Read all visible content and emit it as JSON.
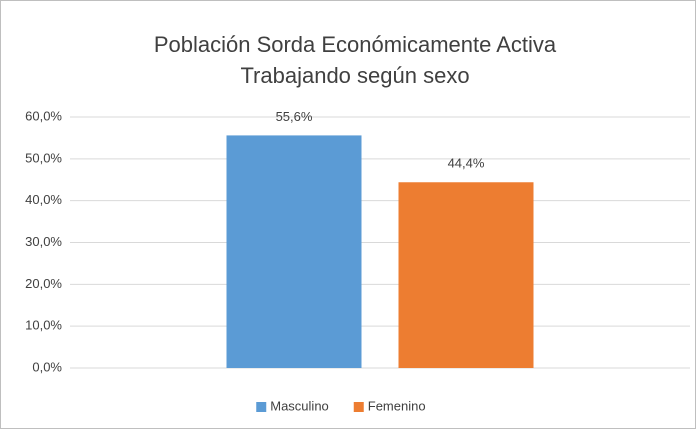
{
  "chart_data": {
    "type": "bar",
    "title": [
      "Población Sorda Económicamente Activa",
      "Trabajando según sexo"
    ],
    "categories": [
      null
    ],
    "series": [
      {
        "name": "Masculino",
        "color": "#5b9bd5",
        "values": [
          55.6
        ],
        "value_labels": [
          "55,6%"
        ]
      },
      {
        "name": "Femenino",
        "color": "#ed7d31",
        "values": [
          44.4
        ],
        "value_labels": [
          "44,4%"
        ]
      }
    ],
    "ylim": [
      0,
      60
    ],
    "yticks": [
      {
        "value": 0,
        "label": "0,0%"
      },
      {
        "value": 10,
        "label": "10,0%"
      },
      {
        "value": 20,
        "label": "20,0%"
      },
      {
        "value": 30,
        "label": "30,0%"
      },
      {
        "value": 40,
        "label": "40,0%"
      },
      {
        "value": 50,
        "label": "50,0%"
      },
      {
        "value": 60,
        "label": "60,0%"
      }
    ],
    "grid": true,
    "legend": "bottom"
  }
}
